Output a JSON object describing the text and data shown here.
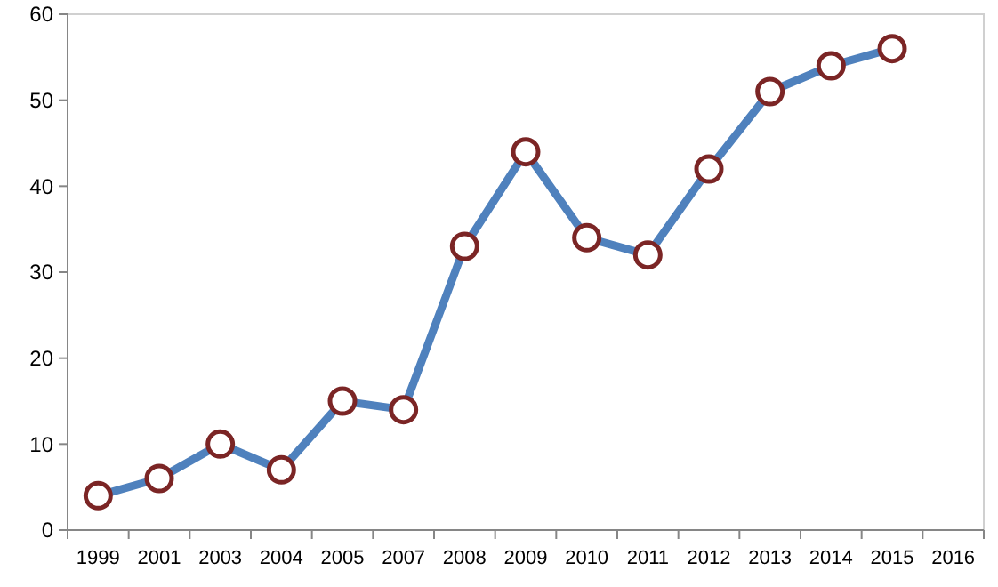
{
  "chart_data": {
    "type": "line",
    "categories": [
      "1999",
      "2001",
      "2003",
      "2004",
      "2005",
      "2007",
      "2008",
      "2009",
      "2010",
      "2011",
      "2012",
      "2013",
      "2014",
      "2015",
      "2016"
    ],
    "series": [
      {
        "color": "#4f81bd",
        "values": [
          4,
          6,
          10,
          7,
          15,
          14,
          33,
          44,
          34,
          32,
          42,
          51,
          54,
          56,
          null
        ]
      }
    ],
    "ylim": [
      0,
      60
    ],
    "yticks": [
      0,
      10,
      20,
      30,
      40,
      50,
      60
    ],
    "grid": false,
    "marker": "circle",
    "line_style": "solid"
  }
}
